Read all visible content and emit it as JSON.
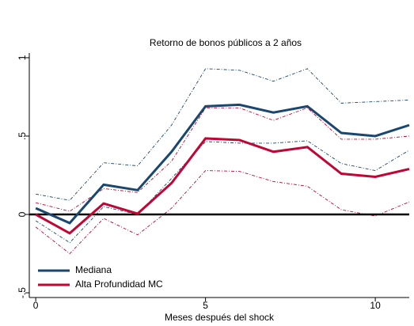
{
  "chart_data": {
    "type": "line",
    "title": "Retorno de bonos públicos a 2 años",
    "x_label": "Meses después del shock",
    "x": [
      0,
      1,
      2,
      3,
      4,
      5,
      6,
      7,
      8,
      9,
      10,
      11
    ],
    "series": [
      {
        "name": "Mediana",
        "color": "#1a476f",
        "values": [
          0.04,
          -0.055,
          0.19,
          0.155,
          0.4,
          0.69,
          0.7,
          0.65,
          0.69,
          0.52,
          0.5,
          0.57
        ],
        "lower": [
          -0.04,
          -0.18,
          0.05,
          0.0,
          0.23,
          0.465,
          0.455,
          0.455,
          0.47,
          0.325,
          0.28,
          0.41
        ],
        "upper": [
          0.13,
          0.09,
          0.33,
          0.31,
          0.57,
          0.93,
          0.92,
          0.85,
          0.93,
          0.71,
          0.72,
          0.73
        ]
      },
      {
        "name": "Alta Profundidad MC",
        "color": "#c10534",
        "values": [
          0.0,
          -0.12,
          0.07,
          0.005,
          0.2,
          0.485,
          0.475,
          0.4,
          0.43,
          0.26,
          0.24,
          0.29
        ],
        "lower": [
          -0.08,
          -0.25,
          -0.025,
          -0.13,
          0.04,
          0.28,
          0.275,
          0.21,
          0.18,
          0.03,
          -0.01,
          0.08
        ],
        "upper": [
          0.075,
          0.02,
          0.165,
          0.14,
          0.34,
          0.68,
          0.68,
          0.6,
          0.68,
          0.48,
          0.48,
          0.5
        ]
      }
    ],
    "reference_line": 0,
    "xlim": [
      -0.19,
      11
    ],
    "xticks": [
      0,
      5,
      10
    ],
    "ylim": [
      -0.53,
      1.03
    ],
    "yticks": [
      {
        "value": -0.5,
        "label": "-.5"
      },
      0,
      {
        "value": 0.5,
        "label": ".5"
      },
      1
    ],
    "legend": "bottom-left"
  }
}
